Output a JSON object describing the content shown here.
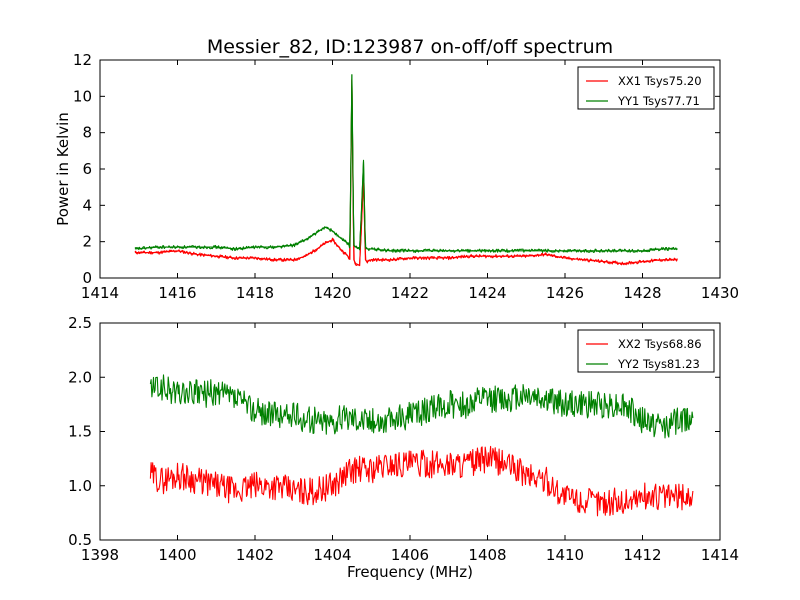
{
  "figure_title": "Messier_82, ID:123987 on-off/off spectrum",
  "chart_data": [
    {
      "type": "line",
      "xlabel": "",
      "ylabel": "Power in Kelvin",
      "xlim": [
        1414,
        1430
      ],
      "ylim": [
        0,
        12
      ],
      "xticks": [
        1414,
        1416,
        1418,
        1420,
        1422,
        1424,
        1426,
        1428,
        1430
      ],
      "yticks": [
        0,
        2,
        4,
        6,
        8,
        10,
        12
      ],
      "xtick_labels": [
        "1414",
        "1416",
        "1418",
        "1420",
        "1422",
        "1424",
        "1426",
        "1428",
        "1430"
      ],
      "ytick_labels": [
        "0",
        "2",
        "4",
        "6",
        "8",
        "10",
        "12"
      ],
      "grid": false,
      "legend_position": "top-right",
      "series": [
        {
          "name": "XX1 Tsys75.20",
          "color": "#ff0000",
          "x": [
            1414.9,
            1415.5,
            1416.0,
            1416.5,
            1417.0,
            1417.5,
            1418.0,
            1418.5,
            1419.0,
            1419.3,
            1419.6,
            1419.8,
            1420.0,
            1420.2,
            1420.4,
            1420.45,
            1420.5,
            1420.55,
            1420.6,
            1420.7,
            1420.75,
            1420.8,
            1420.85,
            1420.9,
            1421.0,
            1421.5,
            1422.0,
            1422.5,
            1423.0,
            1423.5,
            1424.0,
            1424.5,
            1425.0,
            1425.5,
            1426.0,
            1426.5,
            1427.0,
            1427.5,
            1428.0,
            1428.5,
            1428.9
          ],
          "y": [
            1.4,
            1.4,
            1.5,
            1.3,
            1.2,
            1.1,
            1.1,
            1.0,
            1.0,
            1.2,
            1.6,
            1.9,
            2.1,
            1.6,
            1.2,
            1.0,
            10.9,
            1.0,
            0.8,
            0.7,
            3.0,
            5.5,
            1.0,
            0.9,
            1.0,
            1.0,
            1.1,
            1.1,
            1.1,
            1.2,
            1.2,
            1.2,
            1.2,
            1.3,
            1.1,
            1.0,
            0.9,
            0.8,
            0.9,
            1.0,
            1.0
          ]
        },
        {
          "name": "YY1 Tsys77.71",
          "color": "#008000",
          "x": [
            1414.9,
            1415.5,
            1416.0,
            1416.5,
            1417.0,
            1417.5,
            1418.0,
            1418.5,
            1419.0,
            1419.3,
            1419.6,
            1419.8,
            1420.0,
            1420.2,
            1420.4,
            1420.45,
            1420.5,
            1420.55,
            1420.6,
            1420.7,
            1420.75,
            1420.8,
            1420.85,
            1420.9,
            1421.0,
            1421.5,
            1422.0,
            1422.5,
            1423.0,
            1423.5,
            1424.0,
            1424.5,
            1425.0,
            1425.5,
            1426.0,
            1426.5,
            1427.0,
            1427.5,
            1428.0,
            1428.5,
            1428.9
          ],
          "y": [
            1.6,
            1.7,
            1.7,
            1.7,
            1.7,
            1.6,
            1.7,
            1.7,
            1.8,
            2.1,
            2.5,
            2.8,
            2.6,
            2.2,
            1.9,
            1.7,
            11.2,
            1.8,
            1.7,
            1.6,
            3.8,
            6.4,
            1.7,
            1.6,
            1.6,
            1.5,
            1.5,
            1.5,
            1.5,
            1.5,
            1.5,
            1.5,
            1.5,
            1.5,
            1.5,
            1.5,
            1.5,
            1.5,
            1.5,
            1.6,
            1.6
          ]
        }
      ]
    },
    {
      "type": "line",
      "xlabel": "Frequency (MHz)",
      "ylabel": "",
      "xlim": [
        1398,
        1414
      ],
      "ylim": [
        0.5,
        2.5
      ],
      "xticks": [
        1398,
        1400,
        1402,
        1404,
        1406,
        1408,
        1410,
        1412,
        1414
      ],
      "yticks": [
        0.5,
        1.0,
        1.5,
        2.0,
        2.5
      ],
      "xtick_labels": [
        "1398",
        "1400",
        "1402",
        "1404",
        "1406",
        "1408",
        "1410",
        "1412",
        "1414"
      ],
      "ytick_labels": [
        "0.5",
        "1.0",
        "1.5",
        "2.0",
        "2.5"
      ],
      "grid": false,
      "legend_position": "top-right",
      "series": [
        {
          "name": "XX2 Tsys68.86",
          "color": "#ff0000",
          "x": [
            1399.3,
            1399.6,
            1400.0,
            1400.5,
            1401.0,
            1401.5,
            1402.0,
            1402.5,
            1403.0,
            1403.5,
            1404.0,
            1404.5,
            1405.0,
            1405.5,
            1406.0,
            1406.5,
            1407.0,
            1407.5,
            1408.0,
            1408.5,
            1409.0,
            1409.5,
            1410.0,
            1410.5,
            1411.0,
            1411.5,
            1412.0,
            1412.5,
            1413.0,
            1413.3
          ],
          "y": [
            1.1,
            1.05,
            1.1,
            1.05,
            1.0,
            0.95,
            1.0,
            1.0,
            0.95,
            0.95,
            1.0,
            1.15,
            1.15,
            1.2,
            1.2,
            1.2,
            1.2,
            1.2,
            1.25,
            1.2,
            1.1,
            1.05,
            0.9,
            0.85,
            0.85,
            0.85,
            0.9,
            0.9,
            0.9,
            0.9
          ]
        },
        {
          "name": "YY2 Tsys81.23",
          "color": "#008000",
          "x": [
            1399.3,
            1399.6,
            1400.0,
            1400.5,
            1401.0,
            1401.5,
            1402.0,
            1402.5,
            1403.0,
            1403.5,
            1404.0,
            1404.5,
            1405.0,
            1405.5,
            1406.0,
            1406.5,
            1407.0,
            1407.5,
            1408.0,
            1408.5,
            1409.0,
            1409.5,
            1410.0,
            1410.5,
            1411.0,
            1411.5,
            1412.0,
            1412.5,
            1413.0,
            1413.3
          ],
          "y": [
            1.9,
            1.9,
            1.85,
            1.85,
            1.85,
            1.8,
            1.7,
            1.65,
            1.65,
            1.6,
            1.6,
            1.65,
            1.6,
            1.6,
            1.65,
            1.7,
            1.75,
            1.75,
            1.8,
            1.8,
            1.85,
            1.8,
            1.75,
            1.75,
            1.75,
            1.75,
            1.6,
            1.55,
            1.6,
            1.65
          ]
        }
      ]
    }
  ]
}
